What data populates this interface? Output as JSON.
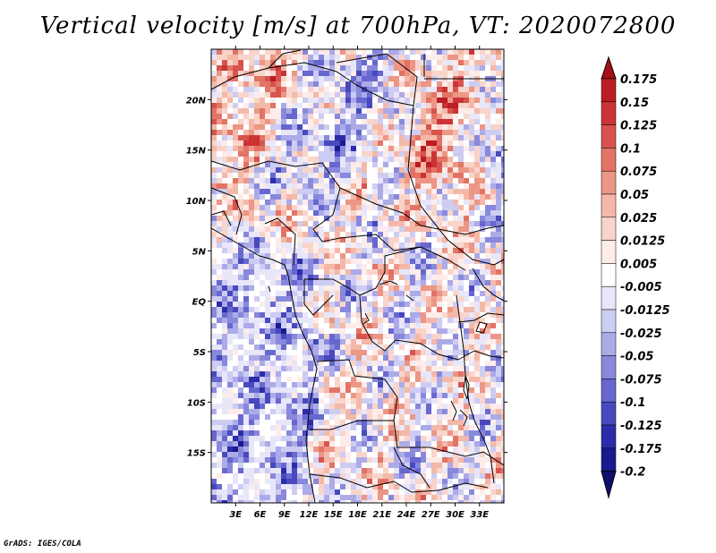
{
  "title": "Vertical velocity [m/s] at 700hPa, VT: 2020072800",
  "credit": "GrADS: IGES/COLA",
  "map": {
    "lon_range": [
      0,
      36
    ],
    "lat_range": [
      -20,
      25
    ],
    "lat_ticks": [
      {
        "value": 20,
        "label": "20N"
      },
      {
        "value": 15,
        "label": "15N"
      },
      {
        "value": 10,
        "label": "10N"
      },
      {
        "value": 5,
        "label": "5N"
      },
      {
        "value": 0,
        "label": "EQ"
      },
      {
        "value": -5,
        "label": "5S"
      },
      {
        "value": -10,
        "label": "10S"
      },
      {
        "value": -15,
        "label": "15S"
      }
    ],
    "lon_ticks": [
      {
        "value": 3,
        "label": "3E"
      },
      {
        "value": 6,
        "label": "6E"
      },
      {
        "value": 9,
        "label": "9E"
      },
      {
        "value": 12,
        "label": "12E"
      },
      {
        "value": 15,
        "label": "15E"
      },
      {
        "value": 18,
        "label": "18E"
      },
      {
        "value": 21,
        "label": "21E"
      },
      {
        "value": 24,
        "label": "24E"
      },
      {
        "value": 27,
        "label": "27E"
      },
      {
        "value": 30,
        "label": "30E"
      },
      {
        "value": 33,
        "label": "33E"
      }
    ]
  },
  "colorbar": {
    "labels": [
      "0.175",
      "0.15",
      "0.125",
      "0.1",
      "0.075",
      "0.05",
      "0.025",
      "0.0125",
      "0.005",
      "-0.005",
      "-0.0125",
      "-0.025",
      "-0.05",
      "-0.075",
      "-0.1",
      "-0.125",
      "-0.175",
      "-0.2"
    ],
    "colors": [
      "#a50f15",
      "#bb1d24",
      "#cb3335",
      "#d8534e",
      "#e27365",
      "#ec9685",
      "#f4b8a8",
      "#f9d4ca",
      "#fdecea",
      "#ffffff",
      "#e8e6f9",
      "#cdccf2",
      "#acabe8",
      "#8888dc",
      "#6767cf",
      "#4848bf",
      "#2c2caa",
      "#1a1a8f",
      "#0f0f70"
    ]
  }
}
